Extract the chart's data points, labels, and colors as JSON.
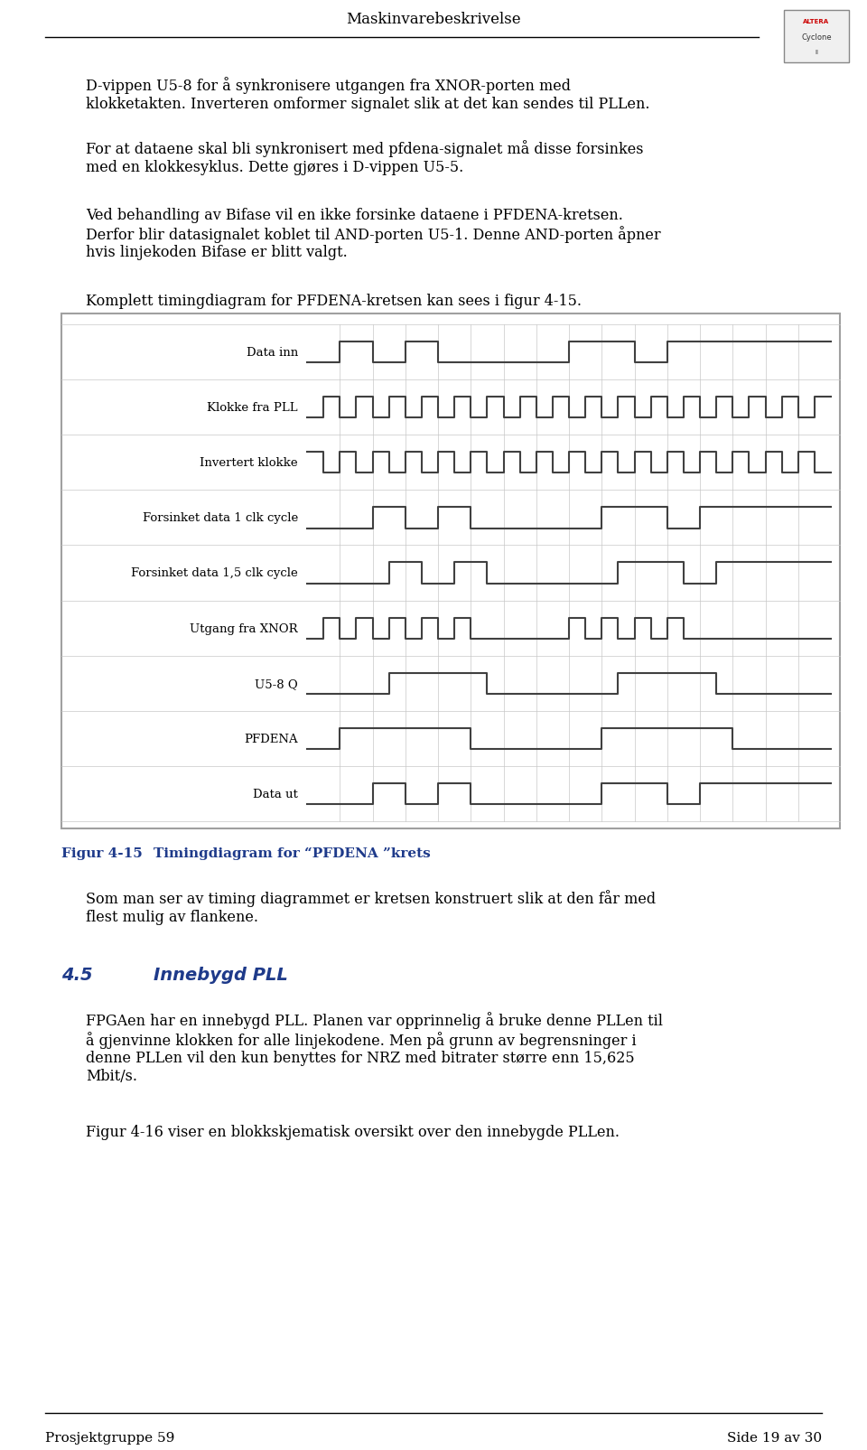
{
  "page_title": "Maskinvarebeskrivelse",
  "footer_left": "Prosjektgruppe 59",
  "footer_right": "Side 19 av 30",
  "para1": "D-vippen U5-8 for å synkronisere utgangen fra XNOR-porten med\nklokketakten. Inverteren omformer signalet slik at det kan sendes til PLLen.",
  "para2": "For at dataene skal bli synkronisert med pfdena-signalet må disse forsinkes\nmed en klokkesyklus. Dette gjøres i D-vippen U5-5.",
  "para3": "Ved behandling av Bifase vil en ikke forsinke dataene i PFDENA-kretsen.\nDerfor blir datasignalet koblet til AND-porten U5-1. Denne AND-porten åpner\nhvis linjekoden Bifase er blitt valgt.",
  "para4": "Komplett timingdiagram for PFDENA-kretsen kan sees i figur 4-15.",
  "figcaption_num": "Figur 4-15",
  "figcaption_text": "Timingdiagram for “PFDENA ”krets",
  "para5": "Som man ser av timing diagrammet er kretsen konstruert slik at den får med\nflest mulig av flankene.",
  "section_num": "4.5",
  "section_title": "Innebygd PLL",
  "para6": "FPGAen har en innebygd PLL. Planen var opprinnelig å bruke denne PLLen til\nå gjenvinne klokken for alle linjekodene. Men på grunn av begrensninger i\ndenne PLLen vil den kun benyttes for NRZ med bitrater større enn 15,625\nMbit/s.",
  "para7": "Figur 4-16 viser en blokkskjematisk oversikt over den innebygde PLLen.",
  "signal_labels": [
    "Data inn",
    "Klokke fra PLL",
    "Invertert klokke",
    "Forsinket data 1 clk cycle",
    "Forsinket data 1,5 clk cycle",
    "Utgang fra XNOR",
    "U5-8 Q",
    "PFDENA",
    "Data ut"
  ],
  "bg_color": "#ffffff",
  "text_color": "#000000",
  "blue_color": "#1e3a8a",
  "grid_color": "#c8c8c8",
  "signal_color": "#404040",
  "box_color": "#c8c8c8",
  "num_grid": 16,
  "num_signals": 9
}
